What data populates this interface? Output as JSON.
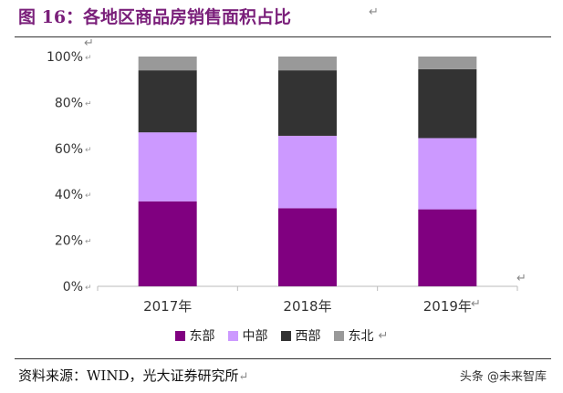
{
  "figure_title": "图 16：各地区商品房销售面积占比",
  "source": "资料来源：WIND，光大证券研究所",
  "watermark": "头条 @未来智库",
  "chart_data": {
    "type": "bar",
    "stacked": true,
    "categories": [
      "2017年",
      "2018年",
      "2019年"
    ],
    "series": [
      {
        "name": "东部",
        "color": "#800080",
        "values": [
          37,
          34,
          33.5
        ]
      },
      {
        "name": "中部",
        "color": "#cc99ff",
        "values": [
          30,
          31.5,
          31
        ]
      },
      {
        "name": "西部",
        "color": "#333333",
        "values": [
          27,
          28.5,
          30
        ]
      },
      {
        "name": "东北",
        "color": "#999999",
        "values": [
          6,
          6,
          5.5
        ]
      }
    ],
    "ylim": [
      0,
      100
    ],
    "yticks": [
      "0%",
      "20%",
      "40%",
      "60%",
      "80%",
      "100%"
    ],
    "legend": "bottom",
    "grid": false
  }
}
